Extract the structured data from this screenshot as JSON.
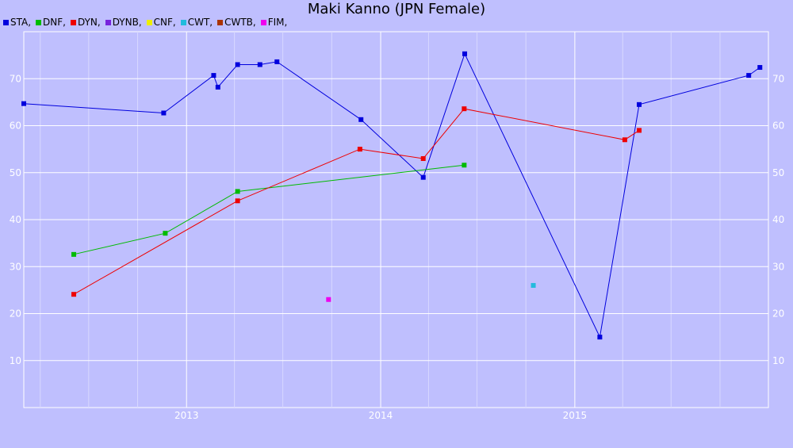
{
  "chart_data": {
    "type": "line",
    "title": "Maki Kanno (JPN Female)",
    "xlabel": "",
    "ylabel": "",
    "xlim": [
      "2012-03-01",
      "2015-12-31"
    ],
    "ylim": [
      0,
      80
    ],
    "y_ticks": [
      10,
      20,
      30,
      40,
      50,
      60,
      70
    ],
    "x_ticks": [
      "2013",
      "2014",
      "2015"
    ],
    "grid": true,
    "legend_placement": "top-left",
    "legend": [
      {
        "name": "STA,",
        "color": "#0000dd"
      },
      {
        "name": "DNF,",
        "color": "#00bb00"
      },
      {
        "name": "DYN,",
        "color": "#ee0000"
      },
      {
        "name": "DYNB,",
        "color": "#7722dd"
      },
      {
        "name": "CNF,",
        "color": "#eeee00"
      },
      {
        "name": "CWT,",
        "color": "#22bbdd"
      },
      {
        "name": "CWTB,",
        "color": "#aa3300"
      },
      {
        "name": "FIM,",
        "color": "#ee00ee"
      }
    ],
    "series": [
      {
        "name": "STA",
        "color": "#0000dd",
        "points": [
          [
            "2012-03-01",
            64.7
          ],
          [
            "2012-11-19",
            62.7
          ],
          [
            "2013-02-21",
            70.7
          ],
          [
            "2013-03-01",
            68.2
          ],
          [
            "2013-04-07",
            73.0
          ],
          [
            "2013-05-19",
            73.0
          ],
          [
            "2013-06-20",
            73.6
          ],
          [
            "2013-11-25",
            61.3
          ],
          [
            "2014-03-22",
            49.0
          ],
          [
            "2014-06-08",
            75.3
          ],
          [
            "2015-02-17",
            15.0
          ],
          [
            "2015-05-02",
            64.5
          ],
          [
            "2015-11-24",
            70.7
          ],
          [
            "2015-12-15",
            72.4
          ]
        ]
      },
      {
        "name": "DNF",
        "color": "#00bb00",
        "points": [
          [
            "2012-06-03",
            32.6
          ],
          [
            "2012-11-22",
            37.1
          ],
          [
            "2013-04-07",
            46.0
          ],
          [
            "2014-06-07",
            51.6
          ]
        ]
      },
      {
        "name": "DYN",
        "color": "#ee0000",
        "points": [
          [
            "2012-06-03",
            24.1
          ],
          [
            "2013-04-07",
            44.0
          ],
          [
            "2013-11-23",
            55.0
          ],
          [
            "2014-03-22",
            53.0
          ],
          [
            "2014-06-07",
            63.6
          ],
          [
            "2015-04-05",
            57.0
          ],
          [
            "2015-05-02",
            59.0
          ]
        ]
      },
      {
        "name": "CWT",
        "color": "#22bbdd",
        "points": [
          [
            "2014-10-15",
            26.0
          ]
        ]
      },
      {
        "name": "FIM",
        "color": "#ee00ee",
        "points": [
          [
            "2013-09-25",
            23.0
          ]
        ]
      }
    ]
  }
}
